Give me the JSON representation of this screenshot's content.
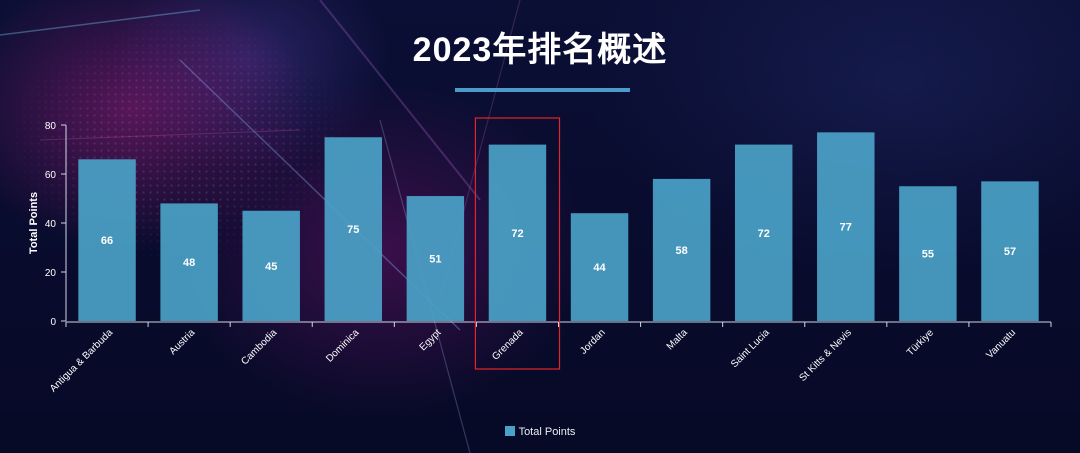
{
  "page": {
    "title": "2023年排名概述"
  },
  "colors": {
    "bar": "#4ba2c8",
    "highlight_box": "#e0262a",
    "title_rule": "#4b9cc8",
    "text": "#ffffff"
  },
  "chart_data": {
    "type": "bar",
    "title": "2023年排名概述",
    "xlabel": "",
    "ylabel": "Total Points",
    "ylim": [
      0,
      80
    ],
    "yticks": [
      0,
      20,
      40,
      60,
      80
    ],
    "grid": false,
    "legend": "bottom",
    "categories": [
      "Antigua & Barbuda",
      "Austria",
      "Cambodia",
      "Dominica",
      "Egypt",
      "Grenada",
      "Jordan",
      "Malta",
      "Saint Lucia",
      "St Kitts & Nevis",
      "Türkiye",
      "Vanuatu"
    ],
    "series": [
      {
        "name": "Total Points",
        "values": [
          66,
          48,
          45,
          75,
          51,
          72,
          44,
          58,
          72,
          77,
          55,
          57
        ]
      }
    ],
    "highlighted_category": "Grenada"
  }
}
